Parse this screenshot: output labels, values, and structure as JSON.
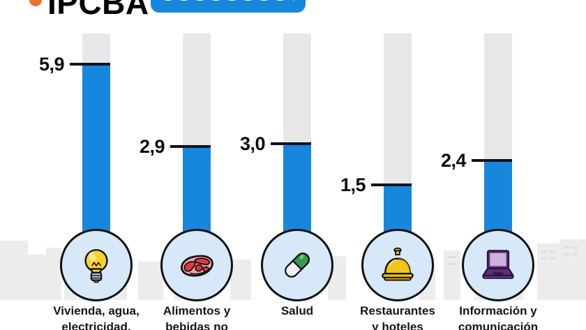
{
  "header": {
    "brand": "IPCBA",
    "badge": {
      "legible_text": ""
    }
  },
  "colors": {
    "bar_blue": "#1787DE",
    "track_gray": "#E7E7E7",
    "tick_dark": "#0D1320",
    "circle_fill": "#D7E8F8",
    "badge_blue": "#1787DE",
    "brand_orange": "#E8732A",
    "skyline_gray": "#ECECEC"
  },
  "chart_data": {
    "type": "bar",
    "title": "IPCBA",
    "categories": [
      "Vivienda, agua, electricidad,",
      "Alimentos y bebidas no",
      "Salud",
      "Restaurantes y hoteles",
      "Información y comunicación"
    ],
    "categories_lines": [
      [
        "Vivienda, agua,",
        "electricidad,"
      ],
      [
        "Alimentos y",
        "bebidas no"
      ],
      [
        "Salud",
        ""
      ],
      [
        "Restaurantes",
        "y hoteles"
      ],
      [
        "Información y",
        "comunicación"
      ]
    ],
    "values": [
      5.9,
      2.9,
      3.0,
      1.5,
      2.4
    ],
    "display_values": [
      "5,9",
      "2,9",
      "3,0",
      "1,5",
      "2,4"
    ],
    "decimal_separator": ",",
    "ylim": [
      0,
      7
    ],
    "grid": false,
    "legend": false,
    "icons": [
      "light-bulb-icon",
      "steak-icon",
      "pill-icon",
      "service-bell-icon",
      "laptop-icon"
    ]
  }
}
